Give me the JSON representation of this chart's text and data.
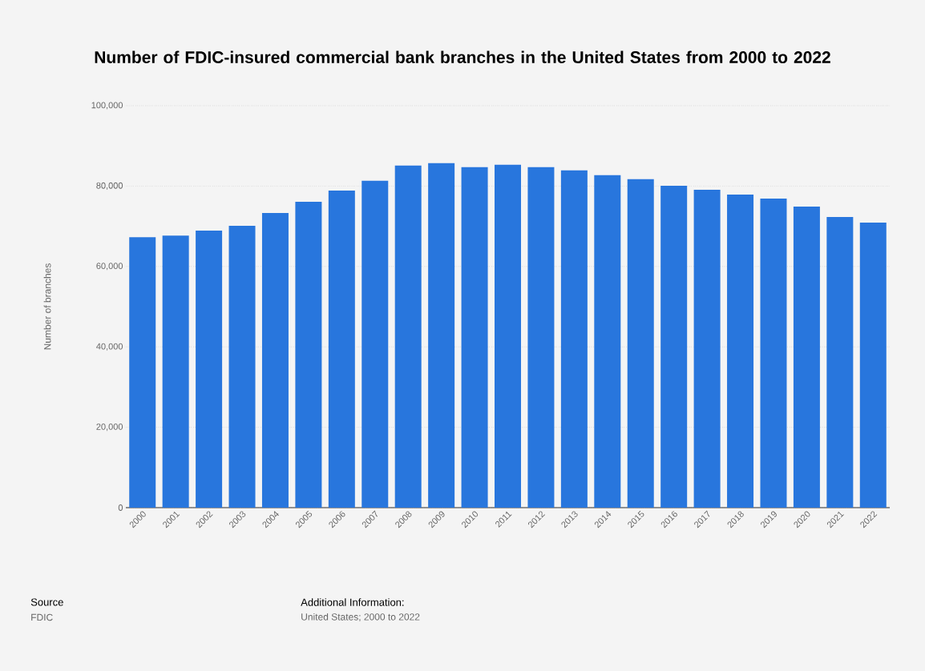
{
  "chart_data": {
    "type": "bar",
    "title": "Number of FDIC-insured commercial bank branches in the United States from 2000 to 2022",
    "ylabel": "Number of branches",
    "categories": [
      "2000",
      "2001",
      "2002",
      "2003",
      "2004",
      "2005",
      "2006",
      "2007",
      "2008",
      "2009",
      "2010",
      "2011",
      "2012",
      "2013",
      "2014",
      "2015",
      "2016",
      "2017",
      "2018",
      "2019",
      "2020",
      "2021",
      "2022"
    ],
    "values": [
      67300,
      67700,
      68900,
      70100,
      73300,
      76100,
      78900,
      81300,
      85100,
      85700,
      84700,
      85300,
      84700,
      83900,
      82700,
      81700,
      80100,
      79100,
      77900,
      76900,
      74900,
      72300,
      70900
    ],
    "color": "#2876dd",
    "ylim": [
      0,
      100000
    ],
    "yticks": [
      0,
      {
        "value": 20000,
        "label": "20,000"
      },
      {
        "value": 40000,
        "label": "40,000"
      },
      {
        "value": 60000,
        "label": "60,000"
      },
      {
        "value": 80000,
        "label": "80,000"
      },
      {
        "value": 100000,
        "label": "100,000"
      }
    ],
    "grid": "y",
    "annotations": [
      "Source",
      "FDIC",
      "Additional Information:",
      "United States; 2000 to 2022"
    ]
  }
}
